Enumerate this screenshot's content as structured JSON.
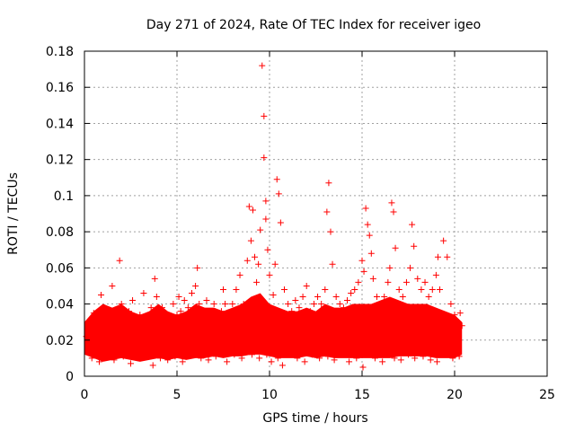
{
  "colors": {
    "series": "#ff0000"
  },
  "chart_data": {
    "type": "scatter",
    "title": "Day 271 of 2024, Rate Of TEC Index for receiver igeo",
    "xlabel": "GPS time / hours",
    "ylabel": "ROTI / TECUs",
    "xlim": [
      0,
      25
    ],
    "ylim": [
      0,
      0.18
    ],
    "xticks": [
      0,
      5,
      10,
      15,
      20,
      25
    ],
    "xtick_labels": [
      "0",
      "5",
      "10",
      "15",
      "20",
      "25"
    ],
    "yticks": [
      0,
      0.02,
      0.04,
      0.06,
      0.08,
      0.1,
      0.12,
      0.14,
      0.16,
      0.18
    ],
    "ytick_labels": [
      "0",
      "0.02",
      "0.04",
      "0.06",
      "0.08",
      "0.1",
      "0.12",
      "0.14",
      "0.16",
      "0.18"
    ],
    "grid": true,
    "legend": "none",
    "marker": "+",
    "series": [
      {
        "x": [
          0.1,
          0.2,
          0.3,
          0.5,
          0.7,
          0.9,
          1.1,
          1.3,
          1.5,
          1.7,
          1.9,
          2.0,
          2.2,
          2.4,
          2.6,
          2.8,
          3.0,
          3.2,
          3.4,
          3.6,
          3.8,
          3.9,
          4.0,
          4.2,
          4.4,
          4.6,
          4.8,
          5.0,
          5.1,
          5.2,
          5.4,
          5.6,
          5.8,
          6.0,
          6.1,
          6.2,
          6.4,
          6.6,
          6.8,
          7.0,
          7.2,
          7.4,
          7.5,
          7.6,
          7.8,
          8.0,
          8.2,
          8.4,
          8.6,
          8.8,
          8.9,
          9.0,
          9.1,
          9.2,
          9.3,
          9.4,
          9.5,
          9.6,
          9.7,
          9.7,
          9.8,
          9.8,
          9.9,
          10.0,
          10.2,
          10.3,
          10.4,
          10.5,
          10.6,
          10.8,
          11.0,
          11.2,
          11.4,
          11.6,
          11.8,
          12.0,
          12.2,
          12.4,
          12.6,
          12.8,
          13.0,
          13.1,
          13.2,
          13.3,
          13.4,
          13.6,
          13.8,
          14.0,
          14.2,
          14.4,
          14.6,
          14.8,
          15.0,
          15.1,
          15.2,
          15.3,
          15.4,
          15.5,
          15.6,
          15.8,
          16.0,
          16.2,
          16.4,
          16.5,
          16.6,
          16.7,
          16.8,
          17.0,
          17.2,
          17.4,
          17.6,
          17.7,
          17.8,
          18.0,
          18.2,
          18.4,
          18.6,
          18.8,
          19.0,
          19.1,
          19.2,
          19.4,
          19.6,
          19.8,
          20.0,
          20.2,
          20.3,
          20.4,
          0.4,
          0.8,
          1.2,
          1.6,
          2.1,
          2.5,
          2.9,
          3.3,
          3.7,
          4.1,
          4.5,
          4.9,
          5.3,
          5.7,
          6.3,
          6.7,
          7.1,
          7.7,
          8.1,
          8.5,
          8.7,
          9.05,
          9.25,
          9.45,
          9.65,
          9.85,
          10.1,
          10.45,
          10.7,
          11.1,
          11.5,
          11.9,
          12.3,
          12.7,
          13.15,
          13.5,
          13.9,
          14.3,
          14.7,
          15.05,
          15.35,
          15.7,
          16.1,
          16.45,
          16.75,
          17.1,
          17.5,
          17.85,
          18.3,
          18.7,
          19.05,
          19.5,
          19.9,
          20.25
        ],
        "y": [
          0.022,
          0.03,
          0.025,
          0.035,
          0.028,
          0.045,
          0.038,
          0.03,
          0.05,
          0.032,
          0.064,
          0.04,
          0.028,
          0.036,
          0.042,
          0.03,
          0.034,
          0.046,
          0.028,
          0.038,
          0.054,
          0.044,
          0.03,
          0.038,
          0.032,
          0.028,
          0.04,
          0.034,
          0.044,
          0.036,
          0.042,
          0.038,
          0.046,
          0.05,
          0.06,
          0.04,
          0.034,
          0.042,
          0.036,
          0.04,
          0.032,
          0.036,
          0.048,
          0.04,
          0.034,
          0.04,
          0.048,
          0.056,
          0.04,
          0.064,
          0.094,
          0.075,
          0.092,
          0.066,
          0.052,
          0.062,
          0.081,
          0.172,
          0.144,
          0.121,
          0.097,
          0.087,
          0.07,
          0.056,
          0.045,
          0.062,
          0.109,
          0.101,
          0.085,
          0.048,
          0.04,
          0.036,
          0.042,
          0.038,
          0.044,
          0.05,
          0.036,
          0.04,
          0.044,
          0.04,
          0.048,
          0.091,
          0.107,
          0.08,
          0.062,
          0.044,
          0.04,
          0.038,
          0.042,
          0.046,
          0.048,
          0.052,
          0.064,
          0.058,
          0.093,
          0.084,
          0.078,
          0.068,
          0.054,
          0.044,
          0.04,
          0.044,
          0.052,
          0.06,
          0.096,
          0.091,
          0.071,
          0.048,
          0.044,
          0.052,
          0.06,
          0.084,
          0.072,
          0.054,
          0.048,
          0.052,
          0.044,
          0.048,
          0.056,
          0.066,
          0.048,
          0.075,
          0.066,
          0.04,
          0.034,
          0.03,
          0.035,
          0.028,
          0.01,
          0.008,
          0.012,
          0.009,
          0.011,
          0.007,
          0.01,
          0.012,
          0.006,
          0.01,
          0.009,
          0.011,
          0.008,
          0.012,
          0.01,
          0.009,
          0.011,
          0.008,
          0.012,
          0.01,
          0.014,
          0.012,
          0.016,
          0.01,
          0.014,
          0.012,
          0.008,
          0.01,
          0.006,
          0.012,
          0.01,
          0.008,
          0.012,
          0.01,
          0.011,
          0.009,
          0.012,
          0.008,
          0.01,
          0.005,
          0.012,
          0.01,
          0.008,
          0.012,
          0.01,
          0.009,
          0.012,
          0.01,
          0.011,
          0.009,
          0.008,
          0.012,
          0.01,
          0.011
        ]
      }
    ],
    "band": {
      "note": "dense cloud",
      "x": [
        0,
        0.5,
        1,
        1.5,
        2,
        2.5,
        3,
        3.5,
        4,
        4.5,
        5,
        5.5,
        6,
        6.5,
        7,
        7.5,
        8,
        8.5,
        9,
        9.5,
        10,
        10.5,
        11,
        11.5,
        12,
        12.5,
        13,
        13.5,
        14,
        14.5,
        15,
        15.5,
        16,
        16.5,
        17,
        17.5,
        18,
        18.5,
        19,
        19.5,
        20,
        20.4
      ],
      "low": [
        0.012,
        0.01,
        0.008,
        0.009,
        0.01,
        0.009,
        0.008,
        0.009,
        0.01,
        0.009,
        0.01,
        0.009,
        0.01,
        0.01,
        0.011,
        0.01,
        0.011,
        0.011,
        0.012,
        0.012,
        0.011,
        0.01,
        0.01,
        0.01,
        0.011,
        0.01,
        0.011,
        0.01,
        0.01,
        0.01,
        0.01,
        0.01,
        0.01,
        0.01,
        0.011,
        0.011,
        0.011,
        0.011,
        0.01,
        0.01,
        0.01,
        0.012
      ],
      "high": [
        0.03,
        0.036,
        0.04,
        0.038,
        0.04,
        0.036,
        0.034,
        0.036,
        0.04,
        0.036,
        0.034,
        0.036,
        0.04,
        0.038,
        0.038,
        0.036,
        0.038,
        0.04,
        0.044,
        0.046,
        0.04,
        0.038,
        0.036,
        0.036,
        0.038,
        0.036,
        0.04,
        0.038,
        0.038,
        0.04,
        0.04,
        0.04,
        0.042,
        0.044,
        0.042,
        0.04,
        0.04,
        0.04,
        0.038,
        0.036,
        0.034,
        0.03
      ]
    }
  }
}
